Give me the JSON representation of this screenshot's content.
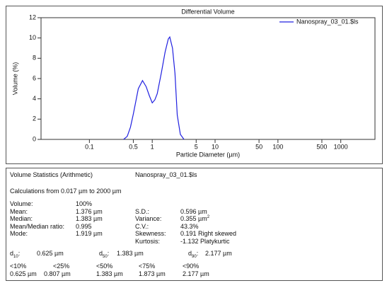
{
  "chart_data": {
    "type": "line",
    "title": "Differential Volume",
    "x_label": "Particle Diameter (µm)",
    "y_label": "Volume (%)",
    "x": [
      0.35,
      0.4,
      0.45,
      0.5,
      0.55,
      0.6,
      0.7,
      0.8,
      0.9,
      1.0,
      1.1,
      1.2,
      1.4,
      1.6,
      1.8,
      1.9,
      2.1,
      2.3,
      2.5,
      2.8,
      3.2
    ],
    "series": [
      {
        "name": "Nanospray_03_01.$ls",
        "color": "#2020e0",
        "values": [
          0,
          0.3,
          1.2,
          2.5,
          3.8,
          5.0,
          5.8,
          5.2,
          4.3,
          3.6,
          3.9,
          4.5,
          6.6,
          8.6,
          9.9,
          10.1,
          9.0,
          6.5,
          2.4,
          0.5,
          0
        ]
      }
    ],
    "log_x": true,
    "xlim": [
      0.017,
      3500
    ],
    "ylim": [
      0,
      12
    ],
    "xticks": [
      0.1,
      0.5,
      1,
      5,
      10,
      50,
      100,
      500,
      1000
    ],
    "yticks": [
      0,
      2,
      4,
      6,
      8,
      10,
      12
    ],
    "legend": "upper right"
  },
  "stats": {
    "title": "Volume Statistics (Arithmetic)",
    "file": "Nanospray_03_01.$ls",
    "range_text": "Calculations from 0.017 µm to 2000 µm",
    "rows": [
      {
        "label": "Volume:",
        "value": "100%"
      },
      {
        "label": "Mean:",
        "value": "1.376 µm",
        "label2": "S.D.:",
        "value2": "0.596 µm"
      },
      {
        "label": "Median:",
        "value": "1.383 µm",
        "label2": "Variance:",
        "value2": "0.355 µm",
        "value2_sup": "2"
      },
      {
        "label": "Mean/Median ratio:",
        "value": "0.995",
        "label2": "C.V.:",
        "value2": "43.3%"
      },
      {
        "label": "Mode:",
        "value": "1.919 µm",
        "label2": "Skewness:",
        "value2": "0.191 Right skewed"
      },
      {
        "label2": "Kurtosis:",
        "value2": "-1.132 Platykurtic"
      }
    ],
    "d_values": [
      {
        "base": "d",
        "sub": "10",
        "suffix": ":",
        "value": "0.625 µm"
      },
      {
        "base": "d",
        "sub": "50",
        "suffix": ":",
        "value": "1.383 µm"
      },
      {
        "base": "d",
        "sub": "90",
        "suffix": ":",
        "value": "2.177 µm"
      }
    ],
    "percentiles": {
      "labels": [
        "<10%",
        "<25%",
        "<50%",
        "<75%",
        "<90%"
      ],
      "values": [
        "0.625 µm",
        "0.807 µm",
        "1.383 µm",
        "1.873 µm",
        "2.177 µm"
      ]
    }
  }
}
